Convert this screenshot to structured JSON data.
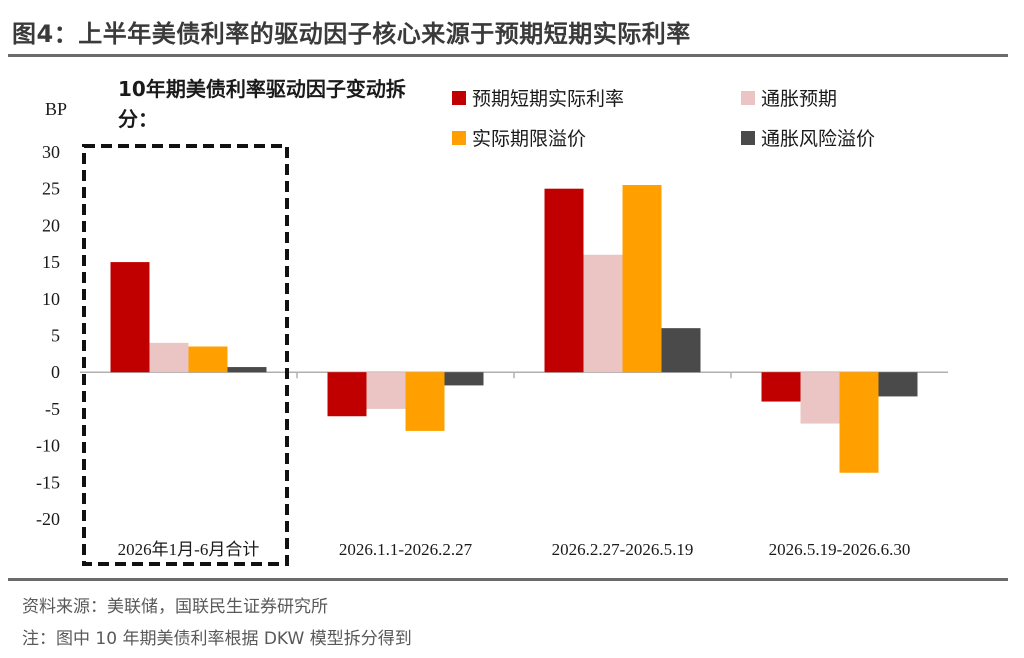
{
  "figure": {
    "title": "图4：上半年美债利率的驱动因子核心来源于预期短期实际利率",
    "source": "资料来源：美联储，国联民生证券研究所",
    "note": "注：图中 10 年期美债利率根据 DKW 模型拆分得到"
  },
  "chart_data": {
    "type": "bar",
    "title": "10年期美债利率驱动因子变动拆分：",
    "ylabel": "BP",
    "ylim": [
      -20,
      30
    ],
    "yticks": [
      -20,
      -15,
      -10,
      -5,
      0,
      5,
      10,
      15,
      20,
      25,
      30
    ],
    "categories": [
      "2026年1月-6月合计",
      "2026.1.1-2026.2.27",
      "2026.2.27-2026.5.19",
      "2026.5.19-2026.6.30"
    ],
    "highlighted_category": "2026年1月-6月合计",
    "legend_position": "top-right",
    "grid": false,
    "series": [
      {
        "name": "预期短期实际利率",
        "color": "#C00000",
        "values": [
          15,
          -6,
          25,
          -4
        ]
      },
      {
        "name": "通胀预期",
        "color": "#EBC4C4",
        "values": [
          4,
          -5,
          16,
          -7
        ]
      },
      {
        "name": "实际期限溢价",
        "color": "#FFA000",
        "values": [
          3.5,
          -8,
          25.5,
          -13.7
        ]
      },
      {
        "name": "通胀风险溢价",
        "color": "#4A4A4A",
        "values": [
          0.7,
          -1.8,
          6,
          -3.3
        ]
      }
    ]
  }
}
